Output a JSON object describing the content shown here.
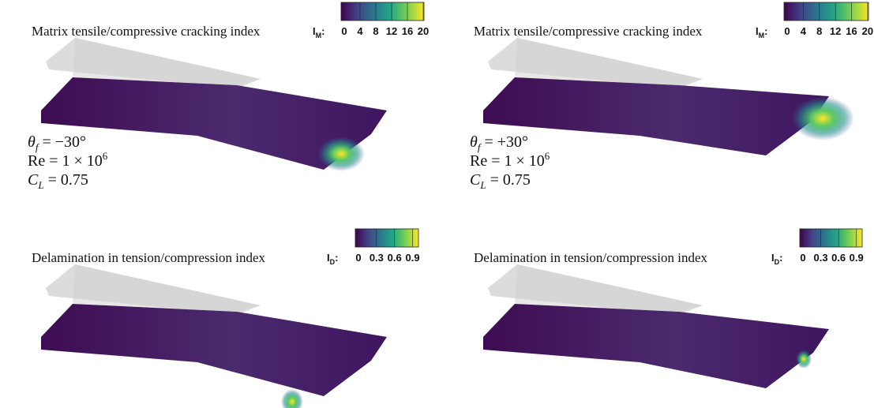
{
  "panels": [
    {
      "title": "Matrix tensile/compressive cracking index",
      "colorbar": {
        "symbol": "I",
        "subscript": "M",
        "suffix": ":",
        "ticks": [
          0,
          4,
          8,
          12,
          16,
          20
        ],
        "clim": [
          0,
          21
        ]
      },
      "annotations": [
        {
          "text": "θ",
          "sub": "f",
          "rest": " = −30°"
        },
        {
          "text": "Re = 1 × 10",
          "sup": "6"
        },
        {
          "text": "C",
          "sub": "L",
          "rest": " = 0.75"
        }
      ]
    },
    {
      "title": "Matrix tensile/compressive cracking index",
      "colorbar": {
        "symbol": "I",
        "subscript": "M",
        "suffix": ":",
        "ticks": [
          0,
          4,
          8,
          12,
          16,
          20
        ],
        "clim": [
          0,
          21
        ]
      },
      "annotations": [
        {
          "text": "θ",
          "sub": "f",
          "rest": " = +30°"
        },
        {
          "text": "Re = 1 × 10",
          "sup": "6"
        },
        {
          "text": "C",
          "sub": "L",
          "rest": " = 0.75"
        }
      ]
    },
    {
      "title": "Delamination in tension/compression index",
      "colorbar": {
        "symbol": "I",
        "subscript": "D",
        "suffix": ":",
        "ticks": [
          0,
          0.3,
          0.6,
          0.9
        ],
        "clim": [
          0,
          1.05
        ]
      },
      "annotations": []
    },
    {
      "title": "Delamination in tension/compression index",
      "colorbar": {
        "symbol": "I",
        "subscript": "D",
        "suffix": ":",
        "ticks": [
          0,
          0.3,
          0.6,
          0.9
        ],
        "clim": [
          0,
          1.05
        ]
      },
      "annotations": []
    }
  ]
}
